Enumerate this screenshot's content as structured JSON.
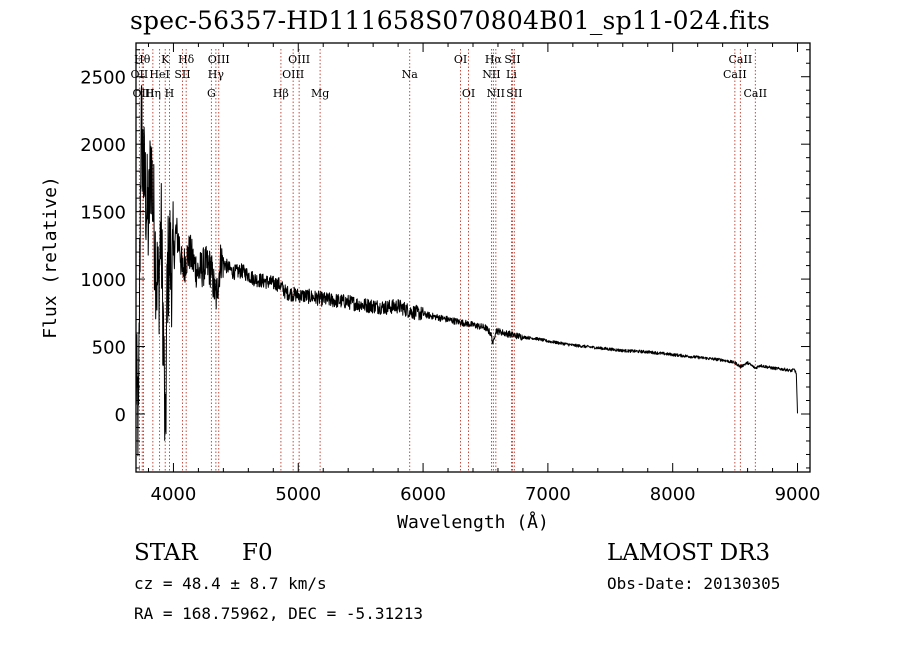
{
  "chart_data": {
    "type": "line",
    "title": "spec-56357-HD111658S070804B01_sp11-024.fits",
    "xlabel": "Wavelength (Å)",
    "ylabel": "Flux (relative)",
    "xlim": [
      3700,
      9100
    ],
    "ylim": [
      -430,
      2750
    ],
    "xticks": [
      4000,
      5000,
      6000,
      7000,
      8000,
      9000
    ],
    "xtick_labels": [
      "4000",
      "5000",
      "6000",
      "7000",
      "8000",
      "9000"
    ],
    "yticks": [
      0,
      500,
      1000,
      1500,
      2000,
      2500
    ],
    "ytick_labels": [
      "0",
      "500",
      "1000",
      "1500",
      "2000",
      "2500"
    ],
    "series": [
      {
        "name": "spectrum",
        "x": [
          3700,
          3720,
          3740,
          3760,
          3780,
          3800,
          3820,
          3840,
          3860,
          3880,
          3900,
          3920,
          3935,
          3950,
          3970,
          3990,
          4020,
          4050,
          4070,
          4100,
          4130,
          4160,
          4200,
          4250,
          4300,
          4340,
          4380,
          4420,
          4480,
          4550,
          4650,
          4750,
          4850,
          4900,
          5000,
          5100,
          5200,
          5300,
          5400,
          5500,
          5600,
          5700,
          5800,
          5900,
          6000,
          6100,
          6200,
          6300,
          6400,
          6500,
          6540,
          6563,
          6580,
          6650,
          6700,
          6800,
          6900,
          7000,
          7200,
          7400,
          7600,
          7800,
          8000,
          8200,
          8400,
          8500,
          8542,
          8600,
          8662,
          8700,
          8800,
          8900,
          8950,
          8975,
          8990,
          9000
        ],
        "y": [
          300,
          -120,
          2200,
          1800,
          1600,
          1400,
          1900,
          1500,
          1100,
          900,
          1400,
          600,
          -300,
          1000,
          1200,
          1050,
          1350,
          1250,
          1050,
          1150,
          1200,
          1120,
          1050,
          1100,
          1080,
          850,
          1150,
          1100,
          1050,
          1060,
          1000,
          980,
          960,
          900,
          880,
          870,
          850,
          840,
          830,
          810,
          800,
          790,
          800,
          760,
          740,
          720,
          700,
          680,
          660,
          640,
          600,
          520,
          620,
          600,
          590,
          570,
          560,
          540,
          510,
          490,
          470,
          460,
          440,
          420,
          400,
          380,
          350,
          380,
          340,
          360,
          340,
          330,
          320,
          330,
          300,
          0
        ]
      }
    ],
    "line_markers": [
      {
        "label": "Hθ",
        "wl": 3750,
        "row": 1
      },
      {
        "label": "OII",
        "wl": 3727,
        "row": 2
      },
      {
        "label": "OIII",
        "wl": 3760,
        "row": 3
      },
      {
        "label": "Hη",
        "wl": 3835,
        "row": 3
      },
      {
        "label": "HeI",
        "wl": 3889,
        "row": 2
      },
      {
        "label": "K",
        "wl": 3934,
        "row": 1
      },
      {
        "label": "H",
        "wl": 3968,
        "row": 3
      },
      {
        "label": "SII",
        "wl": 4072,
        "row": 2
      },
      {
        "label": "Hδ",
        "wl": 4102,
        "row": 1
      },
      {
        "label": "G",
        "wl": 4304,
        "row": 3
      },
      {
        "label": "Hγ",
        "wl": 4340,
        "row": 2
      },
      {
        "label": "OIII",
        "wl": 4363,
        "row": 1
      },
      {
        "label": "Hβ",
        "wl": 4861,
        "row": 3
      },
      {
        "label": "OIII",
        "wl": 4959,
        "row": 2
      },
      {
        "label": "OIII",
        "wl": 5007,
        "row": 1
      },
      {
        "label": "Mg",
        "wl": 5175,
        "row": 3
      },
      {
        "label": "Na",
        "wl": 5893,
        "row": 2
      },
      {
        "label": "OI",
        "wl": 6300,
        "row": 1
      },
      {
        "label": "OI",
        "wl": 6364,
        "row": 3
      },
      {
        "label": "NII",
        "wl": 6548,
        "row": 2
      },
      {
        "label": "Hα",
        "wl": 6563,
        "row": 1
      },
      {
        "label": "NII",
        "wl": 6583,
        "row": 3
      },
      {
        "label": "Li",
        "wl": 6708,
        "row": 2
      },
      {
        "label": "SII",
        "wl": 6716,
        "row": 1
      },
      {
        "label": "SII",
        "wl": 6731,
        "row": 3
      },
      {
        "label": "CaII",
        "wl": 8498,
        "row": 2
      },
      {
        "label": "CaII",
        "wl": 8542,
        "row": 1
      },
      {
        "label": "CaII",
        "wl": 8662,
        "row": 3
      }
    ]
  },
  "info": {
    "object_class": "STAR",
    "subclass": "F0",
    "redshift": "cz = 48.4 ± 8.7 km/s",
    "coords": "RA = 168.75962, DEC =  -5.31213",
    "survey": "LAMOST DR3",
    "obs_date": "Obs-Date: 20130305"
  }
}
